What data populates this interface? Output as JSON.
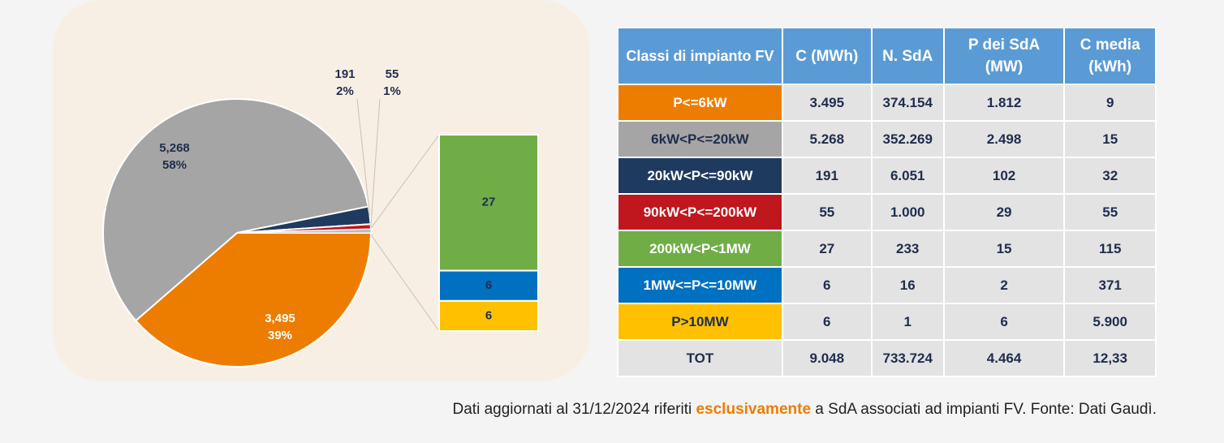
{
  "chart_data": {
    "type": "pie",
    "pie": {
      "values": [
        3495,
        5268,
        191,
        55
      ],
      "value_labels": [
        "3,495",
        "5,268",
        "191",
        "55"
      ],
      "percentages": [
        39,
        58,
        2,
        1
      ],
      "percentage_labels": [
        "39%",
        "58%",
        "2%",
        "1%"
      ],
      "colors": [
        "#ed7d00",
        "#a5a5a5",
        "#1f3a5f",
        "#c0161e"
      ]
    },
    "bar": {
      "values": [
        6,
        6,
        27
      ],
      "colors": [
        "#ffc000",
        "#0070c0",
        "#70ad47"
      ]
    }
  },
  "table": {
    "header": [
      "Classi di impianto FV",
      "C (MWh)",
      "N. SdA",
      "P dei SdA (MW)",
      "C media (kWh)"
    ],
    "rows": [
      [
        "P<=6kW",
        "3.495",
        "374.154",
        "1.812",
        "9"
      ],
      [
        "6kW<P<=20kW",
        "5.268",
        "352.269",
        "2.498",
        "15"
      ],
      [
        "20kW<P<=90kW",
        "191",
        "6.051",
        "102",
        "32"
      ],
      [
        "90kW<P<=200kW",
        "55",
        "1.000",
        "29",
        "55"
      ],
      [
        "200kW<P<1MW",
        "27",
        "233",
        "15",
        "115"
      ],
      [
        "1MW<=P<=10MW",
        "6",
        "16",
        "2",
        "371"
      ],
      [
        "P>10MW",
        "6",
        "1",
        "6",
        "5.900"
      ],
      [
        "TOT",
        "9.048",
        "733.724",
        "4.464",
        "12,33"
      ]
    ],
    "label_colors": [
      "#ed7d00",
      "#a5a5a5",
      "#1f3a5f",
      "#c0161e",
      "#70ad47",
      "#0070c0",
      "#ffc000",
      "#e3e3e3"
    ],
    "label_text_colors": [
      "#ffffff",
      "#1f2d4d",
      "#ffffff",
      "#ffffff",
      "#ffffff",
      "#ffffff",
      "#1f2d4d",
      "#1f2d4d"
    ]
  },
  "footnote": {
    "before": "Dati aggiornati al 31/12/2024 riferiti ",
    "emphasis": "esclusivamente",
    "after": " a SdA associati ad impianti FV. Fonte: Dati Gaudì."
  }
}
